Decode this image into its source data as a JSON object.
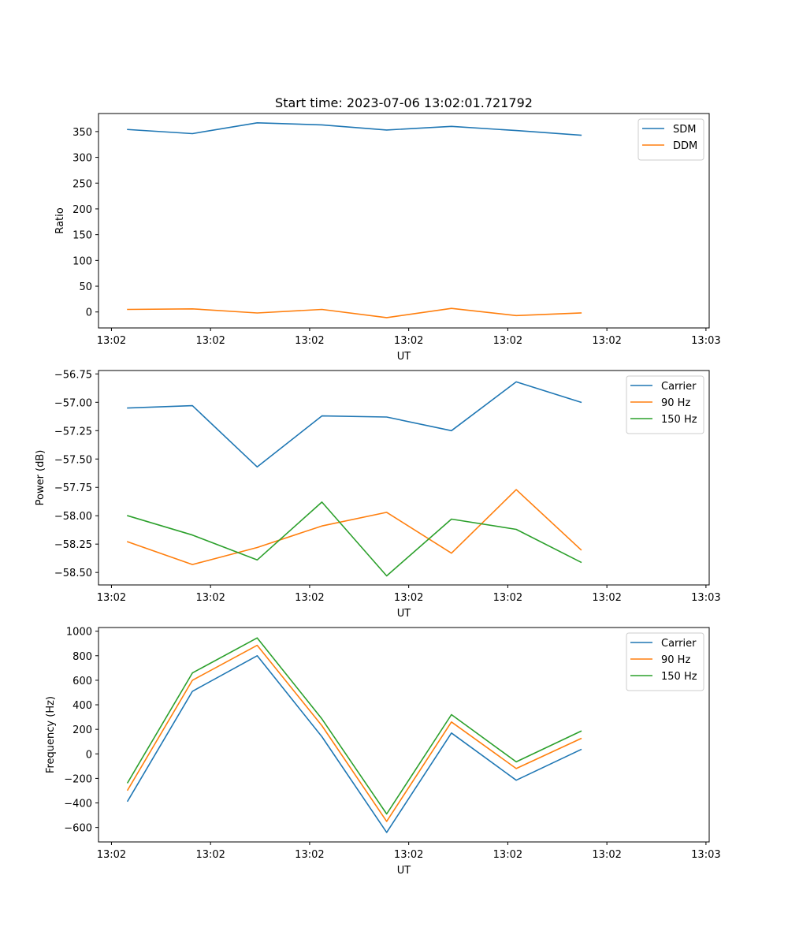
{
  "figure": {
    "title": "Start time: 2023-07-06 13:02:01.721792"
  },
  "colors": {
    "blue": "#1f77b4",
    "orange": "#ff7f0e",
    "green": "#2ca02c"
  },
  "chart_data": [
    {
      "type": "line",
      "title": "Start time: 2023-07-06 13:02:01.721792",
      "xlabel": "UT",
      "ylabel": "Ratio",
      "x": [
        1,
        2,
        3,
        4,
        5,
        6,
        7,
        8
      ],
      "xlim": [
        0.55,
        9.98
      ],
      "xticks": [
        0.75,
        2.28,
        3.81,
        5.34,
        6.87,
        8.4,
        9.93
      ],
      "xtick_labels": [
        "13:02",
        "13:02",
        "13:02",
        "13:02",
        "13:02",
        "13:02",
        "13:03"
      ],
      "ylim": [
        -31,
        385
      ],
      "yticks": [
        0,
        50,
        100,
        150,
        200,
        250,
        300,
        350
      ],
      "ytick_labels": [
        "0",
        "50",
        "100",
        "150",
        "200",
        "250",
        "300",
        "350"
      ],
      "legend_position": "top-right",
      "series": [
        {
          "name": "SDM",
          "color": "#1f77b4",
          "values": [
            354,
            346,
            367,
            363,
            353,
            360,
            352,
            343
          ]
        },
        {
          "name": "DDM",
          "color": "#ff7f0e",
          "values": [
            5,
            6,
            -2,
            5,
            -11,
            7,
            -7,
            -2
          ]
        }
      ]
    },
    {
      "type": "line",
      "title": "",
      "xlabel": "UT",
      "ylabel": "Power (dB)",
      "x": [
        1,
        2,
        3,
        4,
        5,
        6,
        7,
        8
      ],
      "xlim": [
        0.55,
        9.98
      ],
      "xticks": [
        0.75,
        2.28,
        3.81,
        5.34,
        6.87,
        8.4,
        9.93
      ],
      "xtick_labels": [
        "13:02",
        "13:02",
        "13:02",
        "13:02",
        "13:02",
        "13:02",
        "13:03"
      ],
      "ylim": [
        -58.61,
        -56.72
      ],
      "yticks": [
        -58.5,
        -58.25,
        -58.0,
        -57.75,
        -57.5,
        -57.25,
        -57.0,
        -56.75
      ],
      "ytick_labels": [
        "−58.50",
        "−58.25",
        "−58.00",
        "−57.75",
        "−57.50",
        "−57.25",
        "−57.00",
        "−56.75"
      ],
      "legend_position": "top-right",
      "series": [
        {
          "name": "Carrier",
          "color": "#1f77b4",
          "values": [
            -57.05,
            -57.03,
            -57.57,
            -57.12,
            -57.13,
            -57.25,
            -56.82,
            -57.0
          ]
        },
        {
          "name": "90 Hz",
          "color": "#ff7f0e",
          "values": [
            -58.23,
            -58.43,
            -58.28,
            -58.09,
            -57.97,
            -58.33,
            -57.77,
            -58.3
          ]
        },
        {
          "name": "150 Hz",
          "color": "#2ca02c",
          "values": [
            -58.0,
            -58.17,
            -58.39,
            -57.88,
            -58.53,
            -58.03,
            -58.12,
            -58.41
          ]
        }
      ]
    },
    {
      "type": "line",
      "title": "",
      "xlabel": "UT",
      "ylabel": "Frequency (Hz)",
      "x": [
        1,
        2,
        3,
        4,
        5,
        6,
        7,
        8
      ],
      "xlim": [
        0.55,
        9.98
      ],
      "xticks": [
        0.75,
        2.28,
        3.81,
        5.34,
        6.87,
        8.4,
        9.93
      ],
      "xtick_labels": [
        "13:02",
        "13:02",
        "13:02",
        "13:02",
        "13:02",
        "13:02",
        "13:03"
      ],
      "ylim": [
        -718,
        1030
      ],
      "yticks": [
        -600,
        -400,
        -200,
        0,
        200,
        400,
        600,
        800,
        1000
      ],
      "ytick_labels": [
        "−600",
        "−400",
        "−200",
        "0",
        "200",
        "400",
        "600",
        "800",
        "1000"
      ],
      "legend_position": "top-right",
      "series": [
        {
          "name": "Carrier",
          "color": "#1f77b4",
          "values": [
            -385,
            510,
            800,
            140,
            -640,
            170,
            -215,
            35
          ]
        },
        {
          "name": "90 Hz",
          "color": "#ff7f0e",
          "values": [
            -295,
            600,
            885,
            230,
            -550,
            260,
            -120,
            125
          ]
        },
        {
          "name": "150 Hz",
          "color": "#2ca02c",
          "values": [
            -235,
            660,
            945,
            285,
            -490,
            320,
            -65,
            185
          ]
        }
      ]
    }
  ]
}
